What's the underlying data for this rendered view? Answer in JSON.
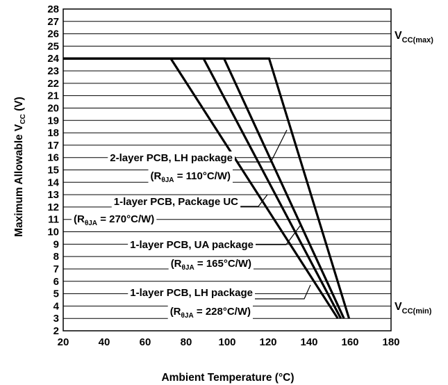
{
  "chart_data": {
    "type": "line",
    "xlabel": "Ambient Temperature (°C)",
    "ylabel": {
      "main": "Maximum Allowable V",
      "sub": "CC",
      "suffix": " (V)"
    },
    "xlim": [
      20,
      180
    ],
    "ylim": [
      2,
      28
    ],
    "x_ticks": [
      "20",
      "40",
      "60",
      "80",
      "100",
      "120",
      "140",
      "160",
      "180"
    ],
    "y_ticks": [
      "2",
      "3",
      "4",
      "5",
      "6",
      "7",
      "8",
      "9",
      "10",
      "11",
      "12",
      "13",
      "14",
      "15",
      "16",
      "17",
      "18",
      "19",
      "20",
      "21",
      "22",
      "23",
      "24",
      "25",
      "26",
      "27",
      "28"
    ],
    "grid": "horizontal",
    "line_color": "#000000",
    "series": [
      {
        "points": [
          [
            20,
            24
          ],
          [
            120.5,
            24
          ],
          [
            159.5,
            3
          ]
        ]
      },
      {
        "points": [
          [
            20,
            24
          ],
          [
            98.5,
            24
          ],
          [
            157,
            3
          ]
        ]
      },
      {
        "points": [
          [
            20,
            24
          ],
          [
            88.5,
            24
          ],
          [
            155.5,
            3
          ]
        ]
      },
      {
        "points": [
          [
            20,
            24
          ],
          [
            72.5,
            24
          ],
          [
            154,
            3
          ]
        ]
      }
    ],
    "annotations": [
      {
        "line1": "2-layer PCB, LH package",
        "r_main": "(R",
        "r_sub": "θJA",
        "r_value": " = 110°C/W)"
      },
      {
        "line1": "1-layer PCB, Package UC",
        "r_main": "(R",
        "r_sub": "θJA",
        "r_value": " = 270°C/W)"
      },
      {
        "line1": "1-layer PCB, UA package",
        "r_main": "(R",
        "r_sub": "θJA",
        "r_value": " = 165°C/W)"
      },
      {
        "line1": "1-layer PCB, LH package",
        "r_main": "(R",
        "r_sub": "θJA",
        "r_value": " = 228°C/W)"
      }
    ],
    "reference_labels": [
      {
        "main": "V",
        "sub": "CC(max)"
      },
      {
        "main": "V",
        "sub": "CC(min)"
      }
    ]
  }
}
